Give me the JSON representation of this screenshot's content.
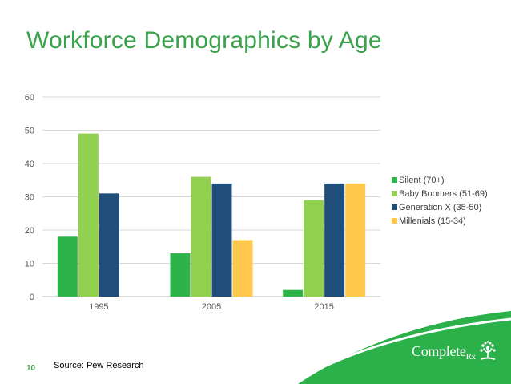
{
  "slide": {
    "title": "Workforce Demographics by Age",
    "page_number": "10",
    "source": "Source: Pew Research",
    "logo": {
      "main": "Complete",
      "sub": "Rx",
      "icon": "tree-icon"
    }
  },
  "colors": {
    "title": "#3aa24a",
    "silent": "#2db34a",
    "boomers": "#92d050",
    "genx": "#1f4e79",
    "millenials": "#ffc84d",
    "swoosh": "#2bb04a"
  },
  "chart_data": {
    "type": "bar",
    "categories": [
      "1995",
      "2005",
      "2015"
    ],
    "series": [
      {
        "name": "Silent (70+)",
        "values": [
          18,
          13,
          2
        ],
        "color": "#2db34a"
      },
      {
        "name": "Baby Boomers (51-69)",
        "values": [
          49,
          36,
          29
        ],
        "color": "#92d050"
      },
      {
        "name": "Generation X (35-50)",
        "values": [
          31,
          34,
          34
        ],
        "color": "#1f4e79"
      },
      {
        "name": "Millenials (15-34)",
        "values": [
          0,
          17,
          34
        ],
        "color": "#ffc84d"
      }
    ],
    "yticks": [
      0,
      10,
      20,
      30,
      40,
      50,
      60
    ],
    "ylim": [
      0,
      60
    ],
    "grid": true,
    "legend": "right",
    "title": "",
    "xlabel": "",
    "ylabel": ""
  }
}
